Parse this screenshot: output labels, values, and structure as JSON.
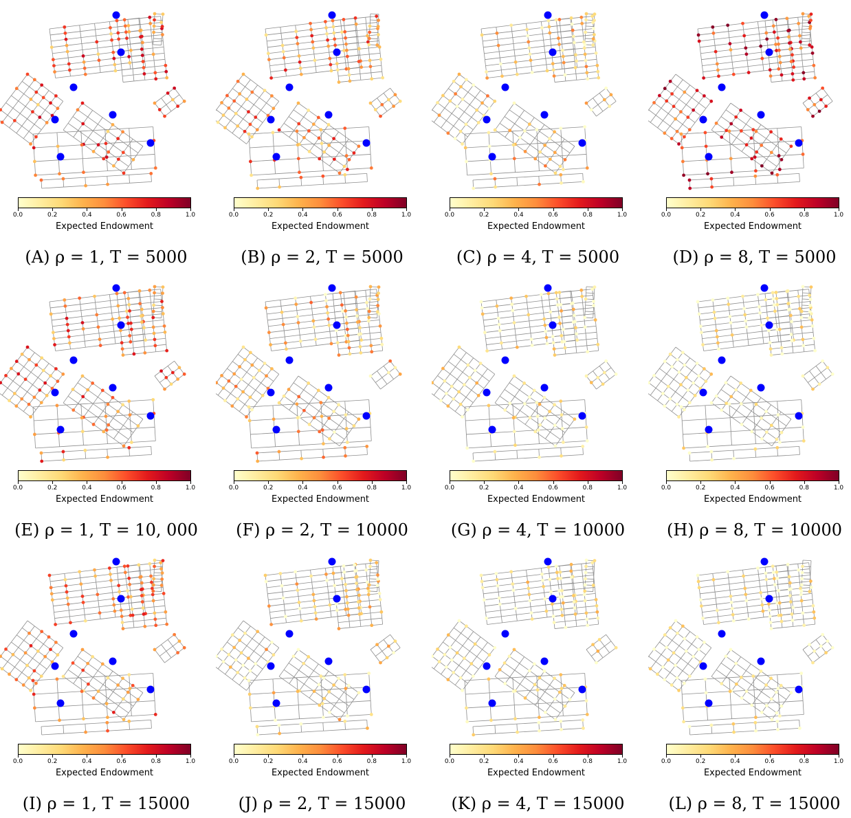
{
  "colorbar": {
    "label": "Expected Endowment",
    "ticks": [
      "0.0",
      "0.2",
      "0.4",
      "0.6",
      "0.8",
      "1.0"
    ],
    "colormap": [
      "#ffffcc",
      "#ffeda0",
      "#fed976",
      "#feb24c",
      "#fd8d3c",
      "#fc4e2a",
      "#e31a1c",
      "#bd0026",
      "#800026"
    ]
  },
  "colors": {
    "station": "#0000ff",
    "edge": "#8c8c8c"
  },
  "panels": [
    {
      "caption": "(A) ρ = 1, T = 5000",
      "level": 0.55
    },
    {
      "caption": "(B) ρ = 2, T = 5000",
      "level": 0.45
    },
    {
      "caption": "(C) ρ = 4, T = 5000",
      "level": 0.25
    },
    {
      "caption": "(D) ρ = 8, T = 5000",
      "level": 0.7
    },
    {
      "caption": "(E) ρ = 1, T = 10, 000",
      "level": 0.5
    },
    {
      "caption": "(F) ρ = 2, T = 10000",
      "level": 0.3
    },
    {
      "caption": "(G) ρ = 4, T = 10000",
      "level": 0.12
    },
    {
      "caption": "(H) ρ = 8, T = 10000",
      "level": 0.06
    },
    {
      "caption": "(I) ρ = 1, T = 15000",
      "level": 0.45
    },
    {
      "caption": "(J) ρ = 2, T = 15000",
      "level": 0.2
    },
    {
      "caption": "(K) ρ = 4, T = 15000",
      "level": 0.12
    },
    {
      "caption": "(L) ρ = 8, T = 15000",
      "level": 0.05
    }
  ]
}
